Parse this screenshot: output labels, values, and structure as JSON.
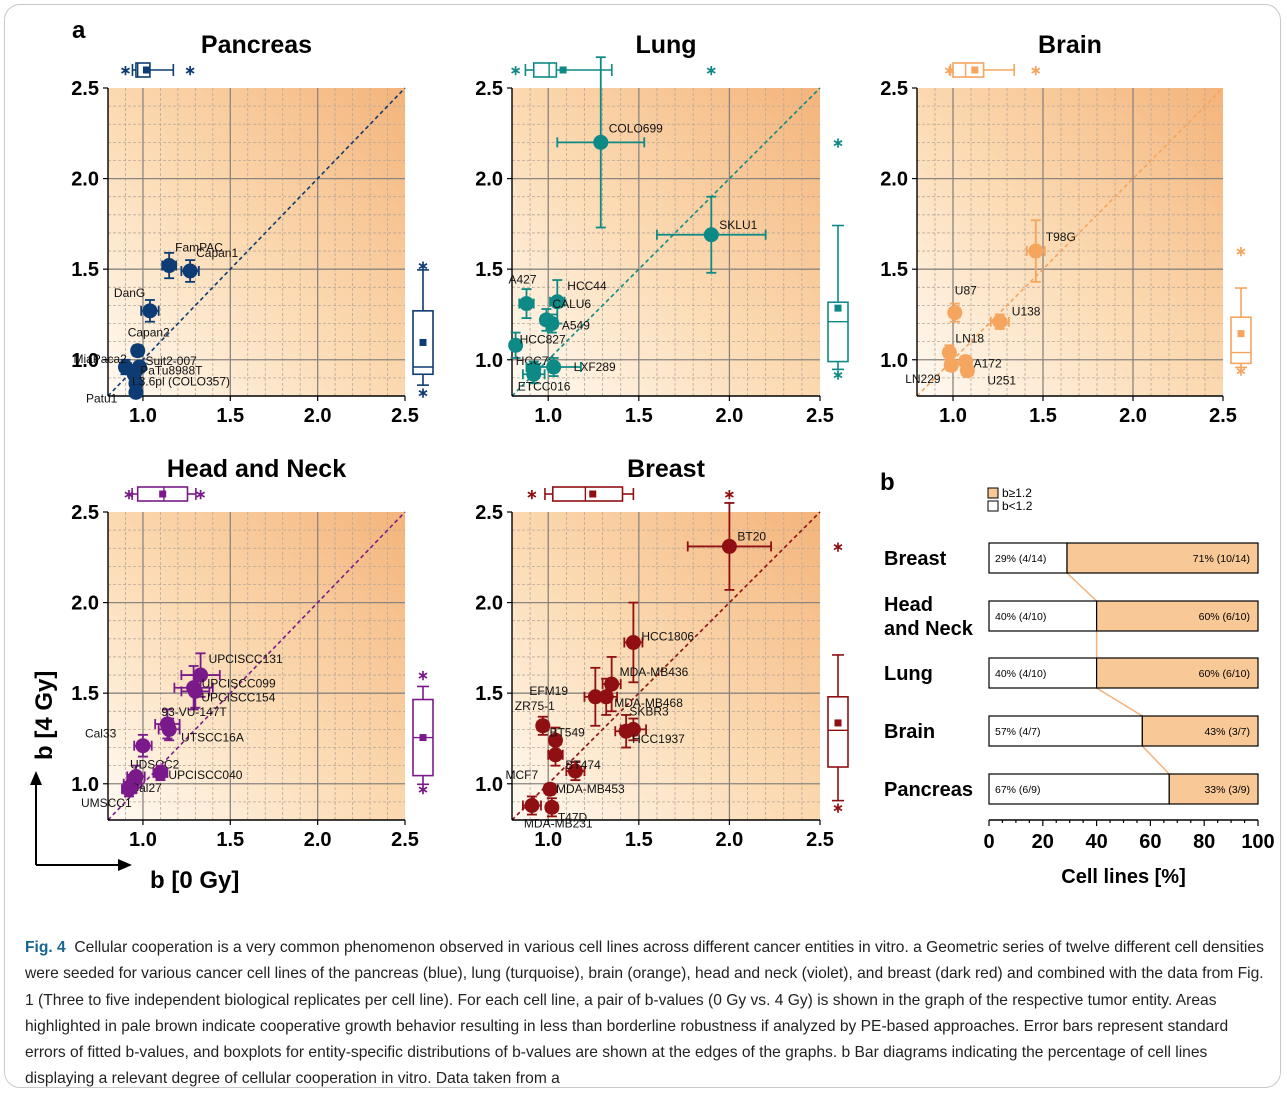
{
  "figure": {
    "panel_a_label": "a",
    "panel_b_label": "b",
    "y_axis_arrow_label": "b [4 Gy]",
    "x_axis_arrow_label": "b [0 Gy]",
    "caption": {
      "label": "Fig. 4",
      "text": "Cellular cooperation is a very common phenomenon observed in various cell lines across different cancer entities in vitro. a Geometric series of twelve different cell densities were seeded for various cancer cell lines of the pancreas (blue), lung (turquoise), brain (orange), head and neck (violet), and breast (dark red) and combined with the data from Fig. 1 (Three to five independent biological replicates per cell line). For each cell line, a pair of b-values (0 Gy vs. 4 Gy) is shown in the graph of the respective tumor entity. Areas highlighted in pale brown indicate cooperative growth behavior resulting in less than borderline robustness if analyzed by PE-based approaches. Error bars represent standard errors of fitted b-values, and boxplots for entity-specific distributions of b-values are shown at the edges of the graphs. b Bar diagrams indicating the percentage of cell lines displaying a relevant degree of cellular cooperation in vitro. Data taken from a"
    }
  },
  "chart_data": [
    {
      "type": "scatter",
      "title": "Pancreas",
      "color": "#0d3b73",
      "xlim": [
        0.8,
        2.5
      ],
      "ylim": [
        0.8,
        2.5
      ],
      "xticks": [
        "1.0",
        "1.5",
        "2.0",
        "2.5"
      ],
      "yticks": [
        "1.0",
        "1.5",
        "2.0",
        "2.5"
      ],
      "points": [
        {
          "label": "FamPAC",
          "x": 1.15,
          "y": 1.52,
          "xerr": 0.04,
          "yerr": 0.07
        },
        {
          "label": "Capan1",
          "x": 1.27,
          "y": 1.49,
          "xerr": 0.05,
          "yerr": 0.06
        },
        {
          "label": "DanG",
          "x": 1.04,
          "y": 1.27,
          "xerr": 0.05,
          "yerr": 0.06
        },
        {
          "label": "Capan2",
          "x": 0.97,
          "y": 1.05,
          "xerr": 0.03,
          "yerr": 0.03
        },
        {
          "label": "MiaPaca2",
          "x": 0.9,
          "y": 0.96,
          "xerr": 0.03,
          "yerr": 0.04
        },
        {
          "label": "Suit2-007",
          "x": 0.98,
          "y": 0.96,
          "xerr": 0.03,
          "yerr": 0.03
        },
        {
          "label": "PaTu8988T",
          "x": 0.95,
          "y": 0.92,
          "xerr": 0.03,
          "yerr": 0.03
        },
        {
          "label": "L3.6pl (COLO357)",
          "x": 0.96,
          "y": 0.87,
          "xerr": 0.03,
          "yerr": 0.03
        },
        {
          "label": "Patu1",
          "x": 0.96,
          "y": 0.82,
          "xerr": 0.03,
          "yerr": 0.03
        }
      ]
    },
    {
      "type": "scatter",
      "title": "Lung",
      "color": "#0e8a86",
      "xlim": [
        0.8,
        2.5
      ],
      "ylim": [
        0.8,
        2.5
      ],
      "xticks": [
        "1.0",
        "1.5",
        "2.0",
        "2.5"
      ],
      "yticks": [
        "1.0",
        "1.5",
        "2.0",
        "2.5"
      ],
      "points": [
        {
          "label": "COLO699",
          "x": 1.29,
          "y": 2.2,
          "xerr": 0.24,
          "yerr": 0.47
        },
        {
          "label": "SKLU1",
          "x": 1.9,
          "y": 1.69,
          "xerr": 0.3,
          "yerr": 0.21
        },
        {
          "label": "A427",
          "x": 0.88,
          "y": 1.31,
          "xerr": 0.04,
          "yerr": 0.08
        },
        {
          "label": "HCC44",
          "x": 1.05,
          "y": 1.32,
          "xerr": 0.04,
          "yerr": 0.12
        },
        {
          "label": "CALU6",
          "x": 0.99,
          "y": 1.22,
          "xerr": 0.03,
          "yerr": 0.06
        },
        {
          "label": "A549",
          "x": 1.02,
          "y": 1.2,
          "xerr": 0.03,
          "yerr": 0.05
        },
        {
          "label": "HCC827",
          "x": 0.82,
          "y": 1.08,
          "xerr": 0.03,
          "yerr": 0.07
        },
        {
          "label": "HCC78",
          "x": 0.92,
          "y": 0.95,
          "xerr": 0.03,
          "yerr": 0.04
        },
        {
          "label": "LXF289",
          "x": 1.03,
          "y": 0.96,
          "xerr": 0.15,
          "yerr": 0.05
        },
        {
          "label": "ETCC016",
          "x": 0.92,
          "y": 0.92,
          "xerr": 0.06,
          "yerr": 0.05
        }
      ]
    },
    {
      "type": "scatter",
      "title": "Brain",
      "color": "#f5a55e",
      "xlim": [
        0.8,
        2.5
      ],
      "ylim": [
        0.8,
        2.5
      ],
      "xticks": [
        "1.0",
        "1.5",
        "2.0",
        "2.5"
      ],
      "yticks": [
        "1.0",
        "1.5",
        "2.0",
        "2.5"
      ],
      "points": [
        {
          "label": "T98G",
          "x": 1.46,
          "y": 1.6,
          "xerr": 0.05,
          "yerr": 0.17
        },
        {
          "label": "U87",
          "x": 1.01,
          "y": 1.26,
          "xerr": 0.03,
          "yerr": 0.05
        },
        {
          "label": "U138",
          "x": 1.26,
          "y": 1.21,
          "xerr": 0.05,
          "yerr": 0.04
        },
        {
          "label": "LN18",
          "x": 0.98,
          "y": 1.04,
          "xerr": 0.03,
          "yerr": 0.04
        },
        {
          "label": "A172",
          "x": 1.07,
          "y": 0.99,
          "xerr": 0.03,
          "yerr": 0.03
        },
        {
          "label": "LN229",
          "x": 0.99,
          "y": 0.97,
          "xerr": 0.03,
          "yerr": 0.03
        },
        {
          "label": "U251",
          "x": 1.08,
          "y": 0.94,
          "xerr": 0.03,
          "yerr": 0.03
        }
      ]
    },
    {
      "type": "scatter",
      "title": "Head and Neck",
      "color": "#7a1a8a",
      "xlim": [
        0.8,
        2.5
      ],
      "ylim": [
        0.8,
        2.5
      ],
      "xticks": [
        "1.0",
        "1.5",
        "2.0",
        "2.5"
      ],
      "yticks": [
        "1.0",
        "1.5",
        "2.0",
        "2.5"
      ],
      "points": [
        {
          "label": "UPCISCC131",
          "x": 1.33,
          "y": 1.6,
          "xerr": 0.11,
          "yerr": 0.12
        },
        {
          "label": "UPCISCC099",
          "x": 1.29,
          "y": 1.53,
          "xerr": 0.11,
          "yerr": 0.12
        },
        {
          "label": "UPCISCC154",
          "x": 1.3,
          "y": 1.51,
          "xerr": 0.08,
          "yerr": 0.09
        },
        {
          "label": "93-VU-147T",
          "x": 1.14,
          "y": 1.33,
          "xerr": 0.07,
          "yerr": 0.08
        },
        {
          "label": "UTSCC16A",
          "x": 1.15,
          "y": 1.3,
          "xerr": 0.06,
          "yerr": 0.06
        },
        {
          "label": "Cal33",
          "x": 1.0,
          "y": 1.21,
          "xerr": 0.05,
          "yerr": 0.06
        },
        {
          "label": "UDSCC2",
          "x": 0.96,
          "y": 1.04,
          "xerr": 0.05,
          "yerr": 0.06
        },
        {
          "label": "UPCISCC040",
          "x": 1.1,
          "y": 1.06,
          "xerr": 0.04,
          "yerr": 0.04
        },
        {
          "label": "Cal27",
          "x": 0.94,
          "y": 1.0,
          "xerr": 0.05,
          "yerr": 0.05
        },
        {
          "label": "UMSCC1",
          "x": 0.92,
          "y": 0.97,
          "xerr": 0.04,
          "yerr": 0.04
        }
      ]
    },
    {
      "type": "scatter",
      "title": "Breast",
      "color": "#8f0f12",
      "xlim": [
        0.8,
        2.5
      ],
      "ylim": [
        0.8,
        2.5
      ],
      "xticks": [
        "1.0",
        "1.5",
        "2.0",
        "2.5"
      ],
      "yticks": [
        "1.0",
        "1.5",
        "2.0",
        "2.5"
      ],
      "points": [
        {
          "label": "BT20",
          "x": 2.0,
          "y": 2.31,
          "xerr": 0.23,
          "yerr": 0.24
        },
        {
          "label": "HCC1806",
          "x": 1.47,
          "y": 1.78,
          "xerr": 0.05,
          "yerr": 0.22
        },
        {
          "label": "MDA-MB436",
          "x": 1.35,
          "y": 1.55,
          "xerr": 0.05,
          "yerr": 0.15
        },
        {
          "label": "EFM19",
          "x": 1.26,
          "y": 1.48,
          "xerr": 0.06,
          "yerr": 0.16
        },
        {
          "label": "MDA-MB468",
          "x": 1.32,
          "y": 1.48,
          "xerr": 0.06,
          "yerr": 0.1
        },
        {
          "label": "ZR75-1",
          "x": 0.97,
          "y": 1.32,
          "xerr": 0.03,
          "yerr": 0.05
        },
        {
          "label": "BT549",
          "x": 1.04,
          "y": 1.24,
          "xerr": 0.03,
          "yerr": 0.07
        },
        {
          "label": "SKBR3",
          "x": 1.47,
          "y": 1.3,
          "xerr": 0.07,
          "yerr": 0.06
        },
        {
          "label": "HCC1937",
          "x": 1.43,
          "y": 1.29,
          "xerr": 0.06,
          "yerr": 0.09
        },
        {
          "label": "MCF7",
          "x": 1.04,
          "y": 1.16,
          "xerr": 0.04,
          "yerr": 0.06
        },
        {
          "label": "BT474",
          "x": 1.15,
          "y": 1.07,
          "xerr": 0.05,
          "yerr": 0.05
        },
        {
          "label": "MDA-MB453",
          "x": 1.01,
          "y": 0.97,
          "xerr": 0.03,
          "yerr": 0.03
        },
        {
          "label": "MDA-MB231",
          "x": 0.91,
          "y": 0.88,
          "xerr": 0.05,
          "yerr": 0.05
        },
        {
          "label": "T47D",
          "x": 1.02,
          "y": 0.87,
          "xerr": 0.03,
          "yerr": 0.05
        }
      ]
    },
    {
      "type": "bar",
      "orientation": "horizontal-stacked",
      "xlabel": "Cell lines [%]",
      "xlim": [
        0,
        100
      ],
      "xticks": [
        "0",
        "20",
        "40",
        "60",
        "80",
        "100"
      ],
      "legend": [
        {
          "name": "b≥1.2",
          "color": "#f8c896"
        },
        {
          "name": "b<1.2",
          "color": "#ffffff"
        }
      ],
      "categories": [
        "Breast",
        "Head\nand Neck",
        "Lung",
        "Brain",
        "Pancreas"
      ],
      "series": [
        {
          "name": "b<1.2",
          "values": [
            29,
            40,
            40,
            57,
            67
          ],
          "labels": [
            "29% (4/14)",
            "40% (4/10)",
            "40% (4/10)",
            "57% (4/7)",
            "67% (6/9)"
          ]
        },
        {
          "name": "b≥1.2",
          "values": [
            71,
            60,
            60,
            43,
            33
          ],
          "labels": [
            "71% (10/14)",
            "60% (6/10)",
            "60% (6/10)",
            "43% (3/7)",
            "33% (3/9)"
          ]
        }
      ]
    }
  ]
}
